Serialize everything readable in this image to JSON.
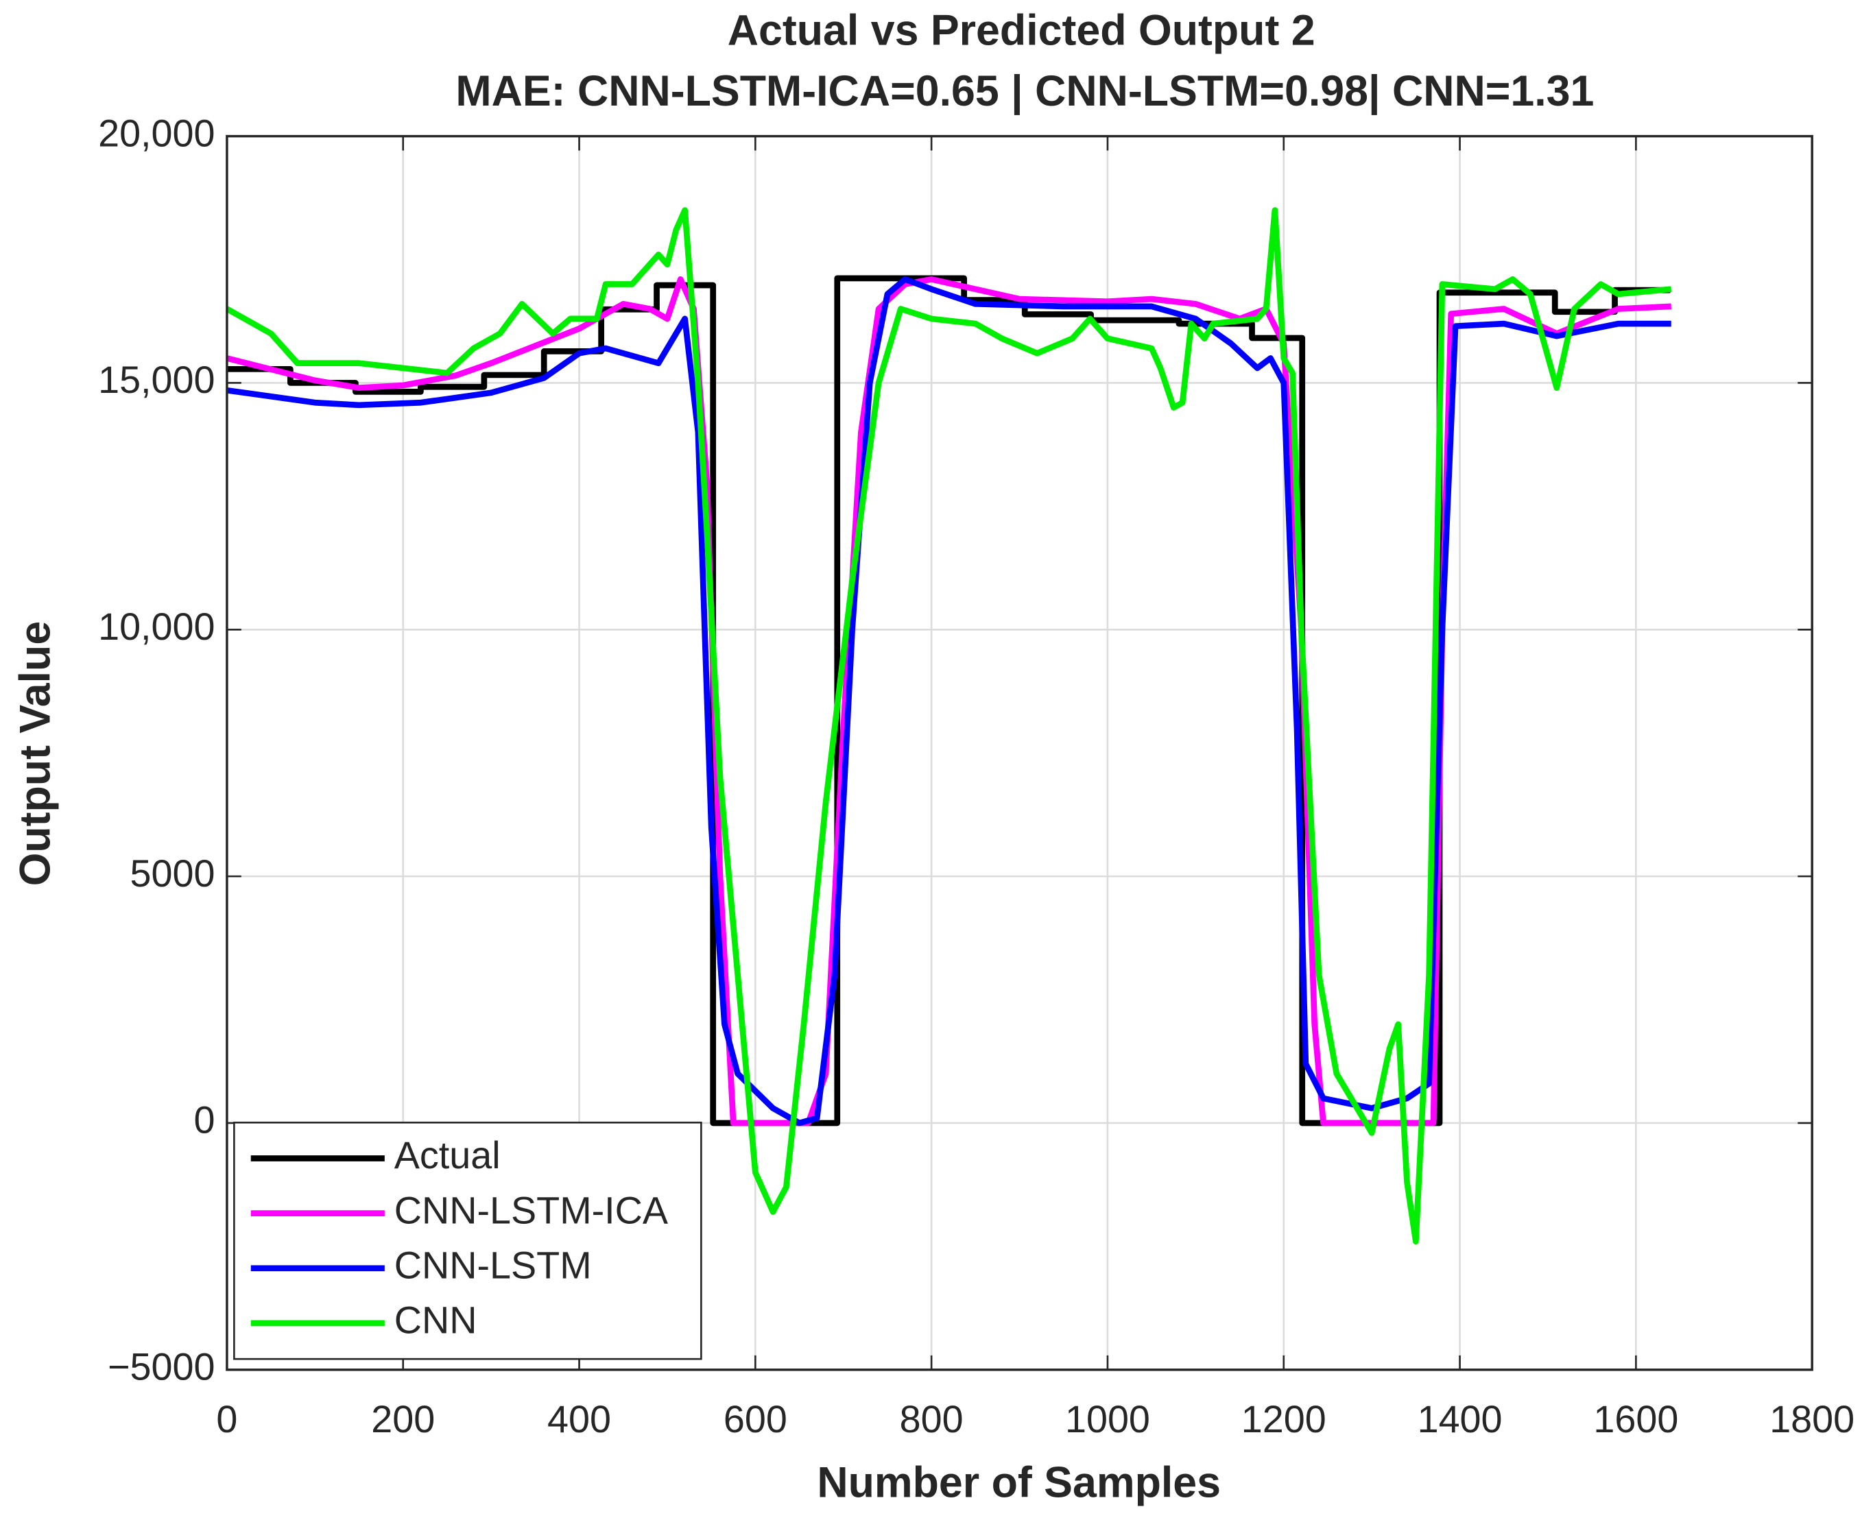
{
  "chart_data": {
    "type": "line",
    "title": "Actual vs Predicted Output 2",
    "subtitle": "MAE: CNN-LSTM-ICA=0.65 | CNN-LSTM=0.98| CNN=1.31",
    "x_label": "Number of Samples",
    "y_label": "Output Value",
    "xlim": [
      0,
      1800
    ],
    "ylim": [
      -5000,
      20000
    ],
    "xticks": [
      0,
      200,
      400,
      600,
      800,
      1000,
      1200,
      1400,
      1600,
      1800
    ],
    "yticks": [
      {
        "value": -5000,
        "label": "−5000"
      },
      0,
      5000,
      {
        "value": 10000,
        "label": "10,000"
      },
      {
        "value": 15000,
        "label": "15,000"
      },
      {
        "value": 20000,
        "label": "20,000"
      }
    ],
    "grid": true,
    "legend_position": "lower left",
    "series": [
      {
        "name": "Actual",
        "color": "#000000",
        "x": [
          0,
          72,
          72,
          146,
          146,
          220,
          220,
          292,
          292,
          360,
          360,
          425,
          425,
          488,
          488,
          552,
          552,
          693,
          693,
          837,
          837,
          906,
          906,
          981,
          981,
          1081,
          1081,
          1164,
          1164,
          1221,
          1221,
          1377,
          1377,
          1508,
          1508,
          1576,
          1576,
          1639
        ],
        "values": [
          15280,
          15280,
          15000,
          15000,
          14820,
          14820,
          14920,
          14920,
          15160,
          15160,
          15640,
          15640,
          16490,
          16490,
          16980,
          16980,
          0,
          0,
          17120,
          17120,
          16680,
          16680,
          16390,
          16390,
          16270,
          16270,
          16200,
          16200,
          15910,
          15910,
          0,
          0,
          16830,
          16830,
          16440,
          16440,
          16880,
          16880
        ]
      },
      {
        "name": "CNN-LSTM-ICA",
        "color": "#ff00ff",
        "x": [
          0,
          100,
          150,
          200,
          260,
          300,
          350,
          400,
          450,
          480,
          500,
          515,
          530,
          545,
          560,
          575,
          660,
          680,
          700,
          720,
          740,
          770,
          800,
          900,
          1000,
          1050,
          1100,
          1150,
          1180,
          1200,
          1220,
          1235,
          1245,
          1370,
          1380,
          1390,
          1450,
          1510,
          1580,
          1640
        ],
        "values": [
          15500,
          15050,
          14900,
          14950,
          15150,
          15400,
          15750,
          16100,
          16600,
          16500,
          16300,
          17100,
          16500,
          13000,
          5000,
          0,
          0,
          1000,
          8000,
          14000,
          16500,
          17000,
          17100,
          16700,
          16650,
          16700,
          16600,
          16300,
          16500,
          15800,
          10000,
          2000,
          0,
          0,
          10000,
          16400,
          16500,
          16000,
          16500,
          16550
        ]
      },
      {
        "name": "CNN-LSTM",
        "color": "#0000ff",
        "x": [
          0,
          100,
          150,
          220,
          300,
          360,
          400,
          430,
          490,
          510,
          520,
          535,
          550,
          565,
          580,
          620,
          650,
          670,
          690,
          710,
          730,
          750,
          770,
          800,
          850,
          950,
          1050,
          1100,
          1140,
          1170,
          1185,
          1200,
          1215,
          1225,
          1245,
          1300,
          1340,
          1365,
          1380,
          1395,
          1450,
          1510,
          1580,
          1640
        ],
        "values": [
          14850,
          14600,
          14550,
          14600,
          14800,
          15100,
          15600,
          15700,
          15400,
          16000,
          16300,
          14000,
          6000,
          2000,
          1000,
          300,
          0,
          100,
          3000,
          10000,
          15000,
          16800,
          17100,
          16900,
          16600,
          16550,
          16550,
          16300,
          15800,
          15300,
          15500,
          15000,
          8000,
          1200,
          500,
          300,
          500,
          800,
          10000,
          16150,
          16200,
          15950,
          16200,
          16200
        ]
      },
      {
        "name": "CNN",
        "color": "#00ee00",
        "x": [
          0,
          50,
          80,
          150,
          250,
          280,
          310,
          335,
          370,
          390,
          420,
          430,
          460,
          490,
          500,
          510,
          520,
          535,
          545,
          560,
          580,
          600,
          620,
          635,
          655,
          680,
          710,
          740,
          765,
          800,
          850,
          880,
          920,
          960,
          980,
          1000,
          1050,
          1060,
          1075,
          1085,
          1095,
          1110,
          1120,
          1170,
          1180,
          1190,
          1200,
          1210,
          1220,
          1240,
          1260,
          1300,
          1320,
          1330,
          1340,
          1350,
          1365,
          1380,
          1440,
          1460,
          1480,
          1510,
          1530,
          1560,
          1580,
          1640
        ],
        "values": [
          16500,
          16000,
          15400,
          15400,
          15200,
          15700,
          16000,
          16600,
          16000,
          16300,
          16300,
          17000,
          17000,
          17600,
          17400,
          18100,
          18500,
          15000,
          12000,
          7000,
          3000,
          -1000,
          -1800,
          -1300,
          2000,
          6500,
          11000,
          15000,
          16500,
          16300,
          16200,
          15900,
          15600,
          15900,
          16300,
          15900,
          15700,
          15300,
          14500,
          14600,
          16200,
          15900,
          16200,
          16300,
          16500,
          18500,
          15500,
          15200,
          10000,
          3000,
          1000,
          -200,
          1500,
          2000,
          -1200,
          -2400,
          3000,
          17000,
          16900,
          17100,
          16800,
          14900,
          16500,
          17000,
          16800,
          16900
        ]
      }
    ]
  }
}
